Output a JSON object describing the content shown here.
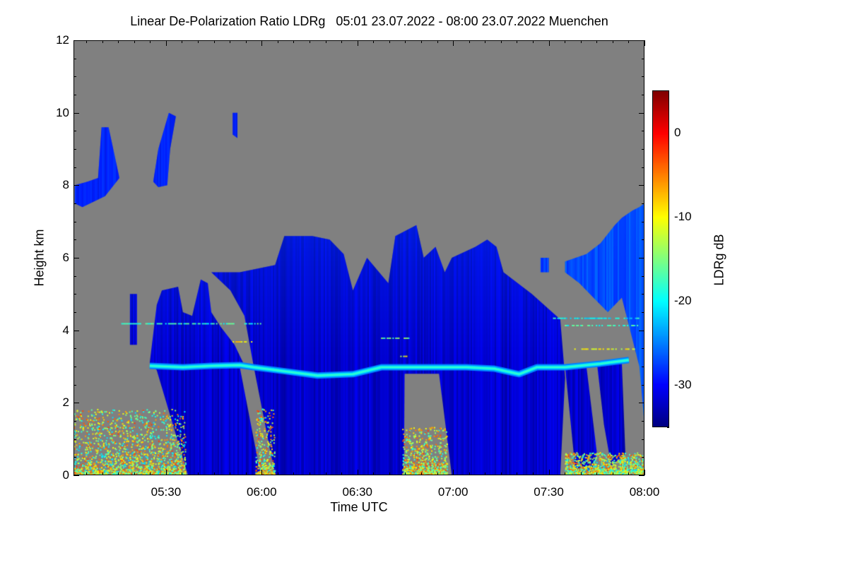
{
  "chart_data": {
    "type": "heatmap",
    "title": "Linear De-Polarization Ratio LDRg   05:01 23.07.2022 - 08:00 23.07.2022 Muenchen",
    "xlabel": "Time UTC",
    "ylabel": "Height km",
    "x_units": "minutes after 05:00 UTC",
    "xlim": [
      1,
      180
    ],
    "ylim": [
      0,
      12
    ],
    "xticks": [
      {
        "value": 30,
        "label": "05:30"
      },
      {
        "value": 60,
        "label": "06:00"
      },
      {
        "value": 90,
        "label": "06:30"
      },
      {
        "value": 120,
        "label": "07:00"
      },
      {
        "value": 150,
        "label": "07:30"
      },
      {
        "value": 180,
        "label": "08:00"
      }
    ],
    "yticks": [
      {
        "value": 0,
        "label": "0"
      },
      {
        "value": 2,
        "label": "2"
      },
      {
        "value": 4,
        "label": "4"
      },
      {
        "value": 6,
        "label": "6"
      },
      {
        "value": 8,
        "label": "8"
      },
      {
        "value": 10,
        "label": "10"
      },
      {
        "value": 12,
        "label": "12"
      }
    ],
    "colorbar": {
      "label": "LDRg dB",
      "range": [
        -35,
        5
      ],
      "colormap": "jet",
      "ticks": [
        {
          "value": 0,
          "label": "0"
        },
        {
          "value": -10,
          "label": "-10"
        },
        {
          "value": -20,
          "label": "-20"
        },
        {
          "value": -30,
          "label": "-30"
        }
      ]
    },
    "background_color": "#808080",
    "regions": [
      {
        "name": "cirrus-1",
        "ldr_db": -30,
        "polygon": [
          [
            1.4,
            8.0
          ],
          [
            5.4,
            8.1
          ],
          [
            8.7,
            8.2
          ],
          [
            9.8,
            9.6
          ],
          [
            12.0,
            9.6
          ],
          [
            15.4,
            8.2
          ],
          [
            10.9,
            7.7
          ],
          [
            3.8,
            7.4
          ],
          [
            1.4,
            7.5
          ]
        ]
      },
      {
        "name": "cirrus-2",
        "ldr_db": -30,
        "polygon": [
          [
            26.0,
            8.1
          ],
          [
            27.6,
            9.0
          ],
          [
            30.9,
            10.0
          ],
          [
            33.1,
            9.9
          ],
          [
            31.3,
            9.0
          ],
          [
            30.4,
            8.0
          ],
          [
            27.6,
            7.95
          ]
        ]
      },
      {
        "name": "cirrus-3",
        "ldr_db": -30,
        "polygon": [
          [
            50.9,
            10.0
          ],
          [
            52.4,
            10.0
          ],
          [
            52.4,
            9.3
          ],
          [
            50.9,
            9.4
          ]
        ]
      },
      {
        "name": "small-cloud",
        "ldr_db": -32,
        "polygon": [
          [
            18.7,
            5.0
          ],
          [
            20.9,
            5.0
          ],
          [
            20.9,
            3.6
          ],
          [
            18.7,
            3.6
          ]
        ]
      },
      {
        "name": "cloud-block-1",
        "ldr_db": -32,
        "polygon": [
          [
            24.9,
            3.1
          ],
          [
            27.1,
            4.7
          ],
          [
            28.7,
            5.1
          ],
          [
            33.8,
            5.2
          ],
          [
            35.3,
            4.5
          ],
          [
            38.2,
            4.4
          ],
          [
            40.9,
            5.4
          ],
          [
            43.1,
            5.3
          ],
          [
            44.2,
            4.5
          ],
          [
            47.1,
            4.1
          ],
          [
            51.5,
            3.6
          ],
          [
            54.2,
            3.1
          ],
          [
            53.1,
            3.0
          ],
          [
            59.7,
            0
          ],
          [
            36.9,
            0
          ],
          [
            27.1,
            2.9
          ]
        ]
      },
      {
        "name": "cloud-block-2",
        "ldr_db": -32,
        "polygon": [
          [
            44.2,
            5.6
          ],
          [
            53.1,
            5.6
          ],
          [
            64.2,
            5.8
          ],
          [
            67.1,
            6.6
          ],
          [
            75.9,
            6.6
          ],
          [
            81.3,
            6.5
          ],
          [
            85.7,
            6.1
          ],
          [
            88.6,
            5.1
          ],
          [
            93.0,
            6.0
          ],
          [
            99.7,
            5.3
          ],
          [
            101.9,
            6.6
          ],
          [
            108.5,
            6.9
          ],
          [
            110.8,
            6.0
          ],
          [
            114.5,
            6.3
          ],
          [
            117.4,
            5.6
          ],
          [
            119.6,
            6.0
          ],
          [
            127.0,
            6.3
          ],
          [
            130.7,
            6.5
          ],
          [
            133.6,
            6.3
          ],
          [
            135.8,
            5.6
          ],
          [
            144.7,
            5.0
          ],
          [
            153.6,
            4.3
          ],
          [
            155.1,
            2.7
          ],
          [
            153.6,
            0
          ],
          [
            64.2,
            0
          ],
          [
            57.5,
            3.0
          ],
          [
            54.6,
            4.4
          ],
          [
            50.2,
            5.1
          ]
        ]
      },
      {
        "name": "streak-1",
        "ldr_db": -32,
        "polygon": [
          [
            155.1,
            3.0
          ],
          [
            161.8,
            3.0
          ],
          [
            165.1,
            0.6
          ],
          [
            162.9,
            0
          ],
          [
            158.5,
            0
          ]
        ]
      },
      {
        "name": "streak-2",
        "ldr_db": -32,
        "polygon": [
          [
            165.1,
            3.1
          ],
          [
            172.9,
            3.1
          ],
          [
            174.0,
            0.6
          ],
          [
            169.6,
            0.25
          ],
          [
            167.3,
            1.4
          ]
        ]
      },
      {
        "name": "right-cloud",
        "ldr_db": -27,
        "polygon": [
          [
            155.1,
            5.9
          ],
          [
            161.8,
            6.1
          ],
          [
            166.2,
            6.4
          ],
          [
            170.7,
            6.9
          ],
          [
            172.9,
            7.1
          ],
          [
            176.2,
            7.3
          ],
          [
            178.4,
            7.4
          ],
          [
            180,
            7.5
          ],
          [
            180,
            1.4
          ],
          [
            178.4,
            3.0
          ],
          [
            172.9,
            4.9
          ],
          [
            168.5,
            4.5
          ],
          [
            164.0,
            4.9
          ],
          [
            159.6,
            5.3
          ],
          [
            155.1,
            5.6
          ]
        ]
      },
      {
        "name": "small-patch",
        "ldr_db": -28,
        "polygon": [
          [
            147.4,
            6.0
          ],
          [
            150.0,
            6.0
          ],
          [
            150.0,
            5.6
          ],
          [
            147.4,
            5.6
          ]
        ]
      }
    ],
    "clear_gaps": [
      {
        "name": "gap-0645",
        "polygon": [
          [
            104.8,
            2.8
          ],
          [
            115.6,
            2.8
          ],
          [
            119.6,
            0
          ],
          [
            104.6,
            0
          ]
        ]
      }
    ],
    "melting_layer": {
      "ldr_db": -21,
      "points": [
        [
          24.9,
          3.02
        ],
        [
          35.3,
          2.98
        ],
        [
          44.2,
          3.02
        ],
        [
          53.1,
          3.04
        ],
        [
          57.5,
          2.98
        ],
        [
          66.4,
          2.88
        ],
        [
          77.5,
          2.75
        ],
        [
          88.6,
          2.79
        ],
        [
          97.5,
          2.98
        ],
        [
          110.8,
          2.98
        ],
        [
          124.1,
          2.98
        ],
        [
          133.0,
          2.94
        ],
        [
          140.7,
          2.79
        ],
        [
          146.3,
          2.98
        ],
        [
          155.1,
          2.98
        ],
        [
          166.2,
          3.08
        ],
        [
          175.1,
          3.18
        ]
      ]
    },
    "horizontal_streaks": [
      [
        150,
        178,
        4.35,
        -20
      ],
      [
        155,
        178,
        4.15,
        -18
      ],
      [
        158,
        178,
        3.5,
        -11
      ],
      [
        16,
        60,
        4.2,
        -18
      ],
      [
        50,
        58,
        3.7,
        -9
      ],
      [
        97,
        106,
        3.8,
        -15
      ],
      [
        103,
        106,
        3.3,
        -11
      ]
    ],
    "ground_clutter": [
      {
        "x": [
          1,
          36
        ],
        "max_height": 1.8,
        "ldr_db": [
          -22,
          -2
        ]
      },
      {
        "x": [
          58,
          64
        ],
        "max_height": 1.8,
        "ldr_db": [
          -20,
          -2
        ]
      },
      {
        "x": [
          104,
          118
        ],
        "max_height": 1.3,
        "ldr_db": [
          -20,
          -2
        ]
      },
      {
        "x": [
          155,
          180
        ],
        "max_height": 0.6,
        "ldr_db": [
          -22,
          -2
        ]
      }
    ]
  }
}
